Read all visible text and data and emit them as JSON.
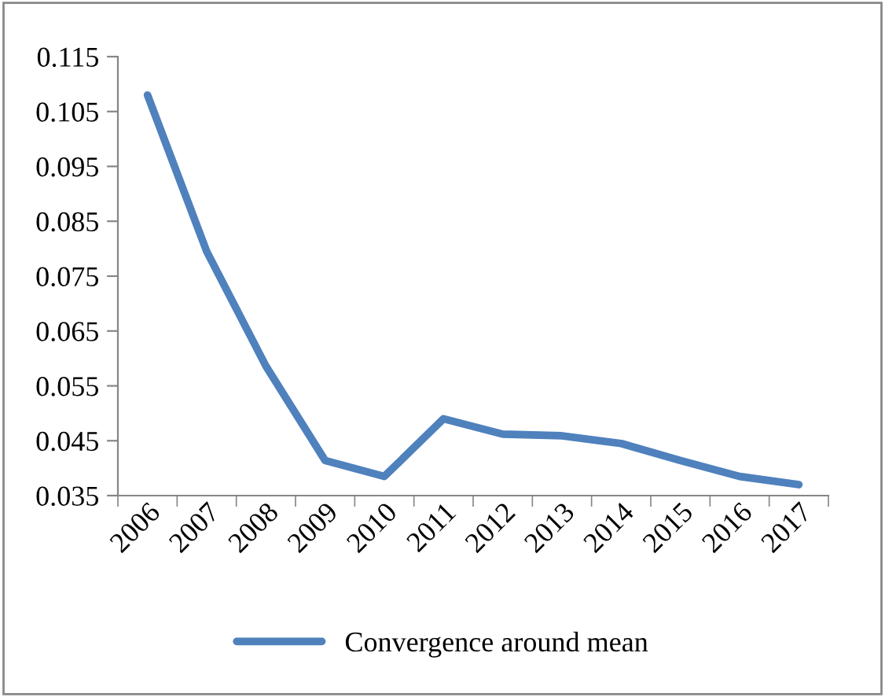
{
  "chart_data": {
    "type": "line",
    "categories": [
      "2006",
      "2007",
      "2008",
      "2009",
      "2010",
      "2011",
      "2012",
      "2013",
      "2014",
      "2015",
      "2016",
      "2017"
    ],
    "series": [
      {
        "name": "Convergence around mean",
        "color": "#4f81bd",
        "values": [
          0.108,
          0.0795,
          0.0586,
          0.0414,
          0.0385,
          0.049,
          0.0462,
          0.0459,
          0.0445,
          0.0414,
          0.0385,
          0.037
        ]
      }
    ],
    "ylim": [
      0.035,
      0.115
    ],
    "yticks": [
      {
        "value": 0.035,
        "label": "0.035"
      },
      {
        "value": 0.045,
        "label": "0.045"
      },
      {
        "value": 0.055,
        "label": "0.055"
      },
      {
        "value": 0.065,
        "label": "0.065"
      },
      {
        "value": 0.075,
        "label": "0.075"
      },
      {
        "value": 0.085,
        "label": "0.085"
      },
      {
        "value": 0.095,
        "label": "0.095"
      },
      {
        "value": 0.105,
        "label": "0.105"
      },
      {
        "value": 0.115,
        "label": "0.115"
      }
    ],
    "grid": false,
    "legend": "bottom",
    "marker": "none",
    "line_style": "solid"
  }
}
